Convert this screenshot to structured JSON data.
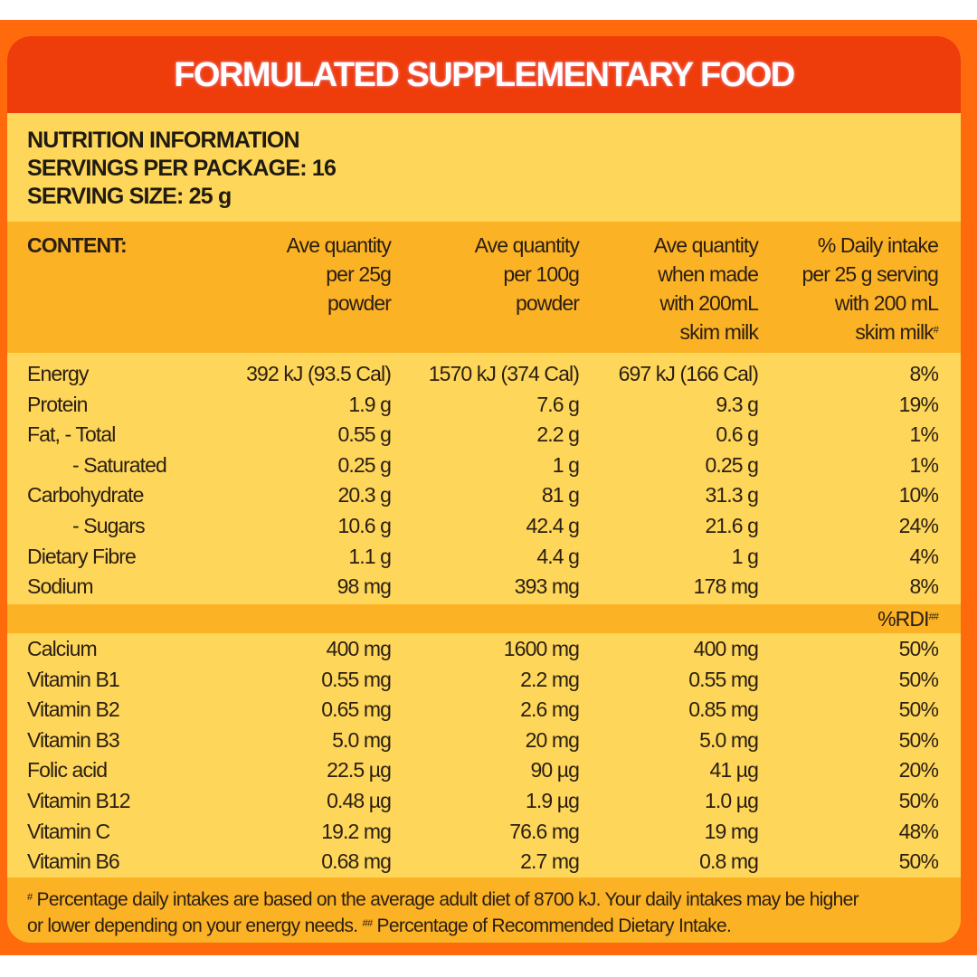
{
  "title": "FORMULATED SUPPLEMENTARY FOOD",
  "info": {
    "line1": "NUTRITION INFORMATION",
    "line2": "SERVINGS PER PACKAGE: 16",
    "line3": "SERVING SIZE: 25 g"
  },
  "columns": {
    "content": "CONTENT:",
    "col1": [
      "Ave quantity",
      "per 25g",
      "powder"
    ],
    "col2": [
      "Ave quantity",
      "per 100g",
      "powder"
    ],
    "col3": [
      "Ave quantity",
      "when made",
      "with 200mL",
      "skim milk"
    ],
    "col4": [
      "% Daily intake",
      "per 25 g serving",
      "with 200 mL",
      "skim milk"
    ],
    "col4_mark": "#"
  },
  "nutrients": [
    {
      "name": "Energy",
      "c1": "392 kJ (93.5 Cal)",
      "c2": "1570 kJ (374 Cal)",
      "c3": "697 kJ (166 Cal)",
      "c4": "8%"
    },
    {
      "name": "Protein",
      "c1": "1.9 g",
      "c2": "7.6 g",
      "c3": "9.3 g",
      "c4": "19%"
    },
    {
      "name": "Fat, - Total",
      "c1": "0.55 g",
      "c2": "2.2 g",
      "c3": "0.6 g",
      "c4": "1%"
    },
    {
      "name": "- Saturated",
      "c1": "0.25 g",
      "c2": "1 g",
      "c3": "0.25 g",
      "c4": "1%"
    },
    {
      "name": "Carbohydrate",
      "c1": "20.3 g",
      "c2": "81 g",
      "c3": "31.3 g",
      "c4": "10%"
    },
    {
      "name": "- Sugars",
      "c1": "10.6 g",
      "c2": "42.4 g",
      "c3": "21.6 g",
      "c4": "24%"
    },
    {
      "name": "Dietary Fibre",
      "c1": "1.1 g",
      "c2": "4.4 g",
      "c3": "1 g",
      "c4": "4%"
    },
    {
      "name": "Sodium",
      "c1": "98 mg",
      "c2": "393 mg",
      "c3": "178 mg",
      "c4": "8%"
    }
  ],
  "rdi_header": "%RDI",
  "rdi_mark": "##",
  "vitamins": [
    {
      "name": "Calcium",
      "c1": "400 mg",
      "c2": "1600 mg",
      "c3": "400 mg",
      "c4": "50%"
    },
    {
      "name": "Vitamin B1",
      "c1": "0.55 mg",
      "c2": "2.2 mg",
      "c3": "0.55 mg",
      "c4": "50%"
    },
    {
      "name": "Vitamin B2",
      "c1": "0.65 mg",
      "c2": "2.6 mg",
      "c3": "0.85 mg",
      "c4": "50%"
    },
    {
      "name": "Vitamin B3",
      "c1": "5.0 mg",
      "c2": "20 mg",
      "c3": "5.0 mg",
      "c4": "50%"
    },
    {
      "name": "Folic acid",
      "c1": "22.5 µg",
      "c2": "90 µg",
      "c3": "41 µg",
      "c4": "20%"
    },
    {
      "name": "Vitamin B12",
      "c1": "0.48 µg",
      "c2": "1.9 µg",
      "c3": "1.0 µg",
      "c4": "50%"
    },
    {
      "name": "Vitamin C",
      "c1": "19.2 mg",
      "c2": "76.6 mg",
      "c3": "19 mg",
      "c4": "48%"
    },
    {
      "name": "Vitamin B6",
      "c1": "0.68 mg",
      "c2": "2.7 mg",
      "c3": "0.8 mg",
      "c4": "50%"
    }
  ],
  "footer": {
    "mark1": "#",
    "text1": " Percentage daily intakes are based on the average adult diet of 8700 kJ. Your daily intakes may be higher",
    "text2": "or lower depending on your energy needs. ",
    "mark2": "##",
    "text3": " Percentage of Recommended Dietary Intake."
  },
  "colors": {
    "outer": "#ff6a0c",
    "header": "#ee3c0a",
    "panel": "#fdd65a",
    "band": "#fbb225"
  }
}
